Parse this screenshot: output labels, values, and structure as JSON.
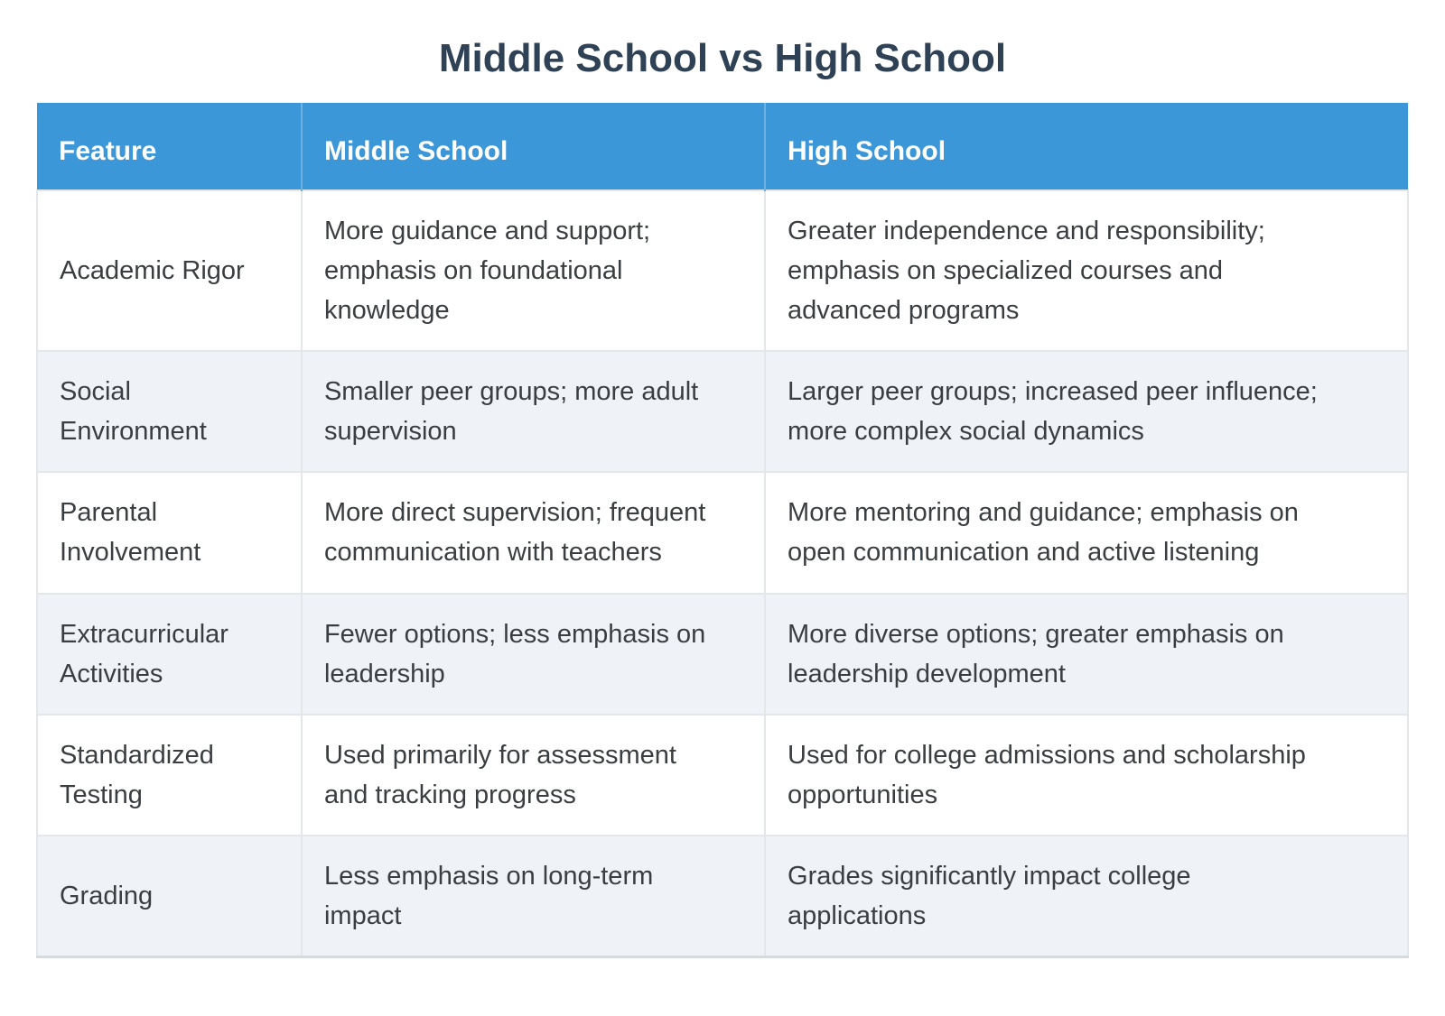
{
  "title": "Middle School vs High School",
  "table": {
    "columns": [
      "Feature",
      "Middle School",
      "High School"
    ],
    "rows": [
      [
        "Academic Rigor",
        "More guidance and support;\nemphasis on foundational\nknowledge",
        "Greater independence and responsibility;\nemphasis on specialized courses and\nadvanced programs"
      ],
      [
        "Social\nEnvironment",
        "Smaller peer groups; more adult\nsupervision",
        "Larger peer groups; increased peer influence;\nmore complex social dynamics"
      ],
      [
        "Parental\nInvolvement",
        "More direct supervision; frequent\ncommunication with teachers",
        "More mentoring and guidance; emphasis on\nopen communication and active listening"
      ],
      [
        "Extracurricular\nActivities",
        "Fewer options; less emphasis on\nleadership",
        "More diverse options; greater emphasis on\nleadership development"
      ],
      [
        "Standardized\nTesting",
        "Used primarily for assessment\nand tracking progress",
        "Used for college admissions and scholarship\nopportunities"
      ],
      [
        "Grading",
        "Less emphasis on long-term\nimpact",
        "Grades significantly impact college\napplications"
      ]
    ]
  },
  "colors": {
    "header_bg": "#3b97d8",
    "header_divider": "#6db1e2",
    "header_text": "#ffffff",
    "title_text": "#2f4154",
    "body_text": "#3b3e41",
    "row_bg": "#ffffff",
    "row_alt_bg": "#eff2f7",
    "cell_border": "#e4e7ea",
    "table_bottom_border": "#d6d9dd"
  }
}
